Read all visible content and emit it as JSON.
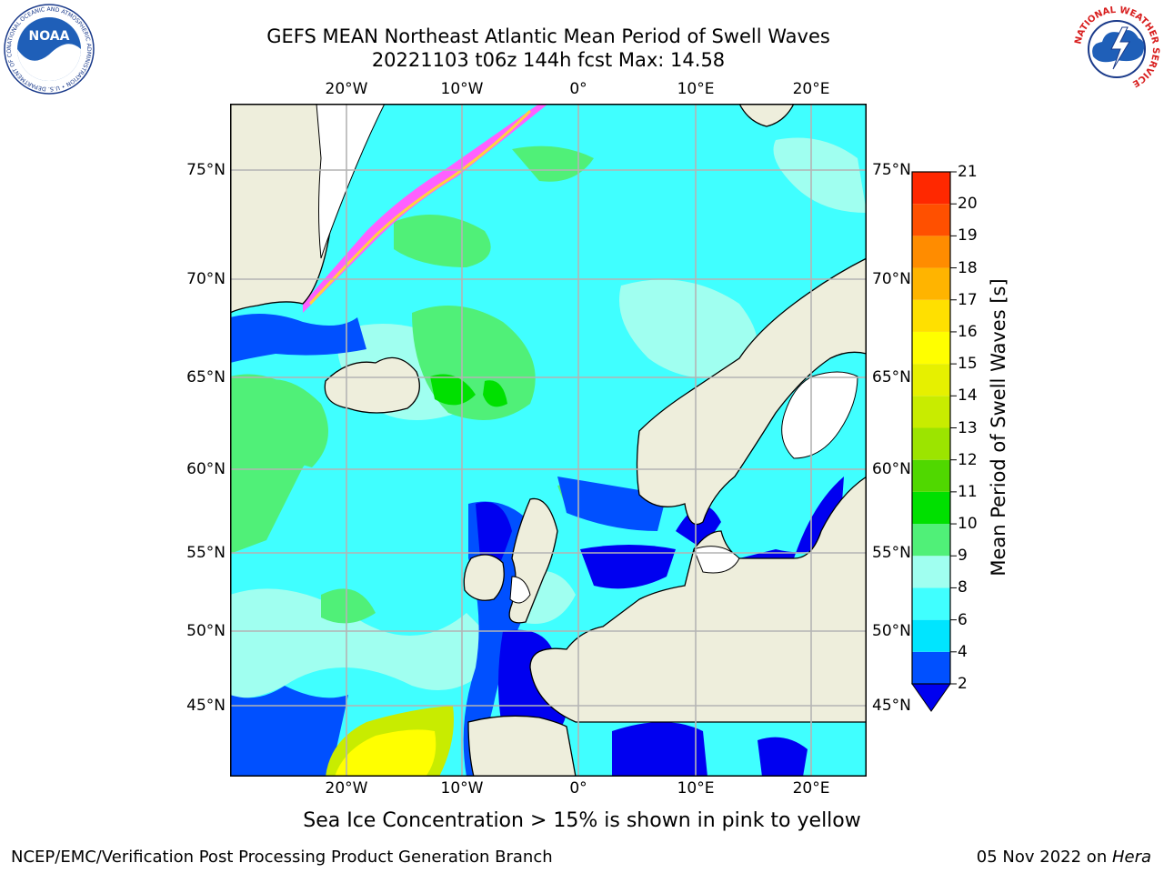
{
  "title_line1": "GEFS MEAN Northeast Atlantic Mean Period of Swell Waves",
  "title_line2": "20221103 t06z 144h fcst   Max: 14.58",
  "lon_labels": [
    "20°W",
    "10°W",
    "0°",
    "10°E",
    "20°E"
  ],
  "lat_labels": [
    "75°N",
    "70°N",
    "65°N",
    "60°N",
    "55°N",
    "50°N",
    "45°N"
  ],
  "colorbar": {
    "label": "Mean Period of Swell Waves [s]",
    "ticks": [
      "2",
      "4",
      "6",
      "8",
      "9",
      "10",
      "11",
      "12",
      "13",
      "14",
      "15",
      "16",
      "17",
      "18",
      "19",
      "20",
      "21"
    ],
    "colors": [
      "#0050ff",
      "#00e5ff",
      "#40ffff",
      "#a0fff0",
      "#50f078",
      "#00e000",
      "#50d800",
      "#9ce400",
      "#c8ec00",
      "#e6f000",
      "#ffff00",
      "#ffe000",
      "#ffb400",
      "#ff8c00",
      "#ff5000",
      "#ff2800"
    ],
    "extend_color": "#0000f0"
  },
  "footnote": "Sea Ice Concentration > 15% is shown in pink to yellow",
  "credit": "NCEP/EMC/Verification Post Processing Product Generation Branch",
  "date_prefix": "05 Nov 2022 on ",
  "date_machine": "Hera",
  "logos": {
    "left_text": "NOAA",
    "left_ring": "NATIONAL OCEANIC AND ATMOSPHERIC ADMINISTRATION • U.S. DEPARTMENT OF COMMERCE",
    "right_ring": "NATIONAL WEATHER SERVICE"
  }
}
